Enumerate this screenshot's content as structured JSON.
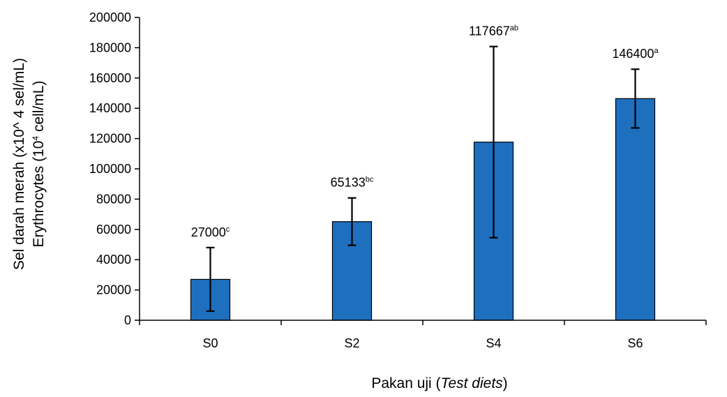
{
  "chart_data": {
    "type": "bar",
    "categories": [
      "S0",
      "S2",
      "S4",
      "S6"
    ],
    "values": [
      27000,
      65133,
      117667,
      146400
    ],
    "error_low": [
      6000,
      49500,
      54500,
      127000
    ],
    "error_high": [
      48000,
      80800,
      180800,
      165800
    ],
    "data_labels": [
      {
        "value": "27000",
        "sup": "c"
      },
      {
        "value": "65133",
        "sup": "bc"
      },
      {
        "value": "117667",
        "sup": "ab"
      },
      {
        "value": "146400",
        "sup": "a"
      }
    ],
    "ylim": [
      0,
      200000
    ],
    "yticks": [
      0,
      20000,
      40000,
      60000,
      80000,
      100000,
      120000,
      140000,
      160000,
      180000,
      200000
    ],
    "ylabel_line1": "Sel darah merah (x10^ 4 sel/mL)",
    "ylabel_line2_pre": "Erythrocytes (10",
    "ylabel_line2_sup": "4",
    "ylabel_line2_post": " cell/mL)",
    "xlabel_pre": "Pakan uji (",
    "xlabel_italic": "Test diets",
    "xlabel_post": ")",
    "bar_color": "#1f6fbf",
    "bar_edge_color": "#000000",
    "grid": false,
    "legend": "none"
  }
}
